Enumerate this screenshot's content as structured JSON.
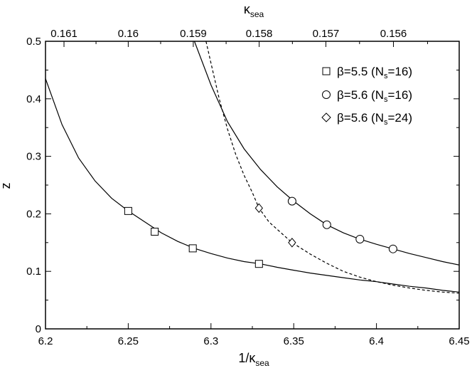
{
  "chart_data": {
    "type": "scatter",
    "xlabel": {
      "main": "1/κ",
      "sub": "sea"
    },
    "ylabel": "z",
    "top_axis_label": {
      "main": "κ",
      "sub": "sea"
    },
    "xlim": [
      6.2,
      6.45
    ],
    "ylim": [
      0,
      0.5
    ],
    "x_ticks": [
      "6.2",
      "6.25",
      "6.3",
      "6.35",
      "6.4",
      "6.45"
    ],
    "x_tick_values": [
      6.2,
      6.25,
      6.3,
      6.35,
      6.4,
      6.45
    ],
    "y_ticks": [
      "0",
      "0.1",
      "0.2",
      "0.3",
      "0.4",
      "0.5"
    ],
    "y_tick_values": [
      0,
      0.1,
      0.2,
      0.3,
      0.4,
      0.5
    ],
    "top_ticks": [
      "0.161",
      "0.16",
      "0.159",
      "0.158",
      "0.157",
      "0.156"
    ],
    "top_tick_values": [
      0.161,
      0.16,
      0.159,
      0.158,
      0.157,
      0.156
    ],
    "grid": false,
    "legend_position": "top-right",
    "series": [
      {
        "name": {
          "main": "β=5.5 (N",
          "sub": "s",
          "end": "=16)"
        },
        "marker": "square",
        "x": [
          6.25,
          6.266,
          6.289,
          6.329
        ],
        "y": [
          0.205,
          0.169,
          0.14,
          0.113
        ]
      },
      {
        "name": {
          "main": "β=5.6 (N",
          "sub": "s",
          "end": "=16)"
        },
        "marker": "circle",
        "x": [
          6.349,
          6.37,
          6.39,
          6.41
        ],
        "y": [
          0.222,
          0.181,
          0.156,
          0.139
        ]
      },
      {
        "name": {
          "main": "β=5.6 (N",
          "sub": "s",
          "end": "=24)"
        },
        "marker": "diamond",
        "x": [
          6.329,
          6.349
        ],
        "y": [
          0.21,
          0.15
        ]
      }
    ],
    "fit_curves": [
      {
        "style": "solid",
        "x": [
          6.2,
          6.21,
          6.22,
          6.23,
          6.24,
          6.25,
          6.26,
          6.27,
          6.28,
          6.29,
          6.3,
          6.31,
          6.32,
          6.33,
          6.34,
          6.35,
          6.36,
          6.37,
          6.38,
          6.39,
          6.4,
          6.41,
          6.42,
          6.43,
          6.44,
          6.45
        ],
        "y": [
          0.435,
          0.355,
          0.297,
          0.257,
          0.227,
          0.205,
          0.186,
          0.167,
          0.152,
          0.14,
          0.131,
          0.123,
          0.117,
          0.113,
          0.107,
          0.102,
          0.097,
          0.093,
          0.089,
          0.085,
          0.082,
          0.078,
          0.074,
          0.071,
          0.067,
          0.064
        ]
      },
      {
        "style": "solid",
        "x": [
          6.29,
          6.3,
          6.31,
          6.32,
          6.33,
          6.34,
          6.35,
          6.36,
          6.37,
          6.38,
          6.39,
          6.4,
          6.41,
          6.42,
          6.43,
          6.44,
          6.45
        ],
        "y": [
          0.5,
          0.424,
          0.36,
          0.313,
          0.277,
          0.247,
          0.222,
          0.2,
          0.181,
          0.167,
          0.156,
          0.147,
          0.139,
          0.131,
          0.124,
          0.117,
          0.111
        ]
      },
      {
        "style": "dashed",
        "x": [
          6.297,
          6.3,
          6.305,
          6.31,
          6.315,
          6.32,
          6.325,
          6.329,
          6.335,
          6.34,
          6.349,
          6.36,
          6.37,
          6.38,
          6.39,
          6.4,
          6.41,
          6.42,
          6.43,
          6.44,
          6.45
        ],
        "y": [
          0.5,
          0.462,
          0.4,
          0.347,
          0.303,
          0.267,
          0.237,
          0.21,
          0.186,
          0.173,
          0.15,
          0.13,
          0.114,
          0.1,
          0.09,
          0.082,
          0.076,
          0.071,
          0.067,
          0.064,
          0.062
        ]
      }
    ]
  }
}
